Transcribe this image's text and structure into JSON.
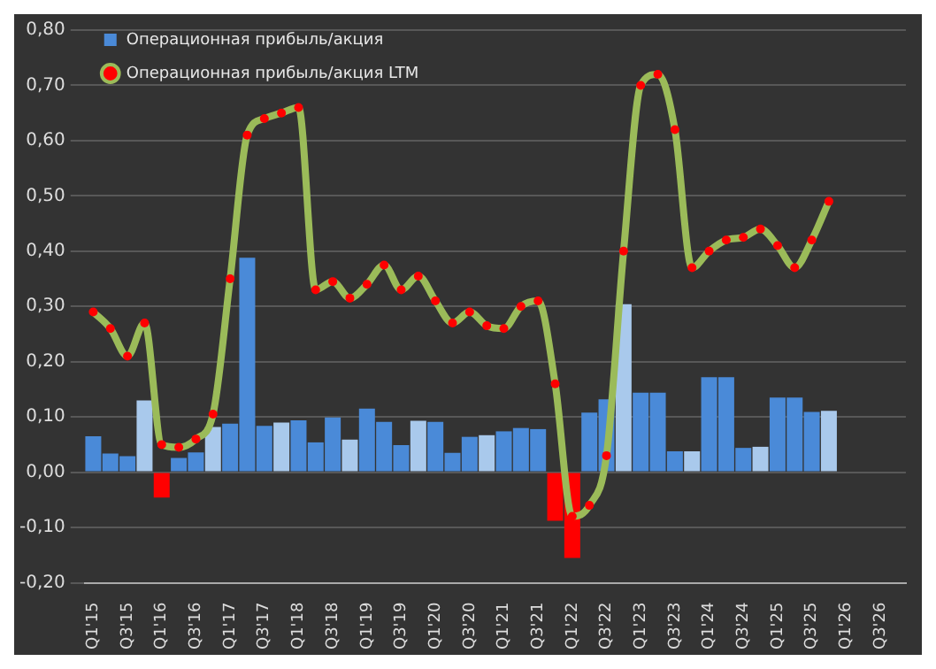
{
  "chart_data": {
    "type": "bar",
    "categories": [
      "Q1'15",
      null,
      "Q3'15",
      null,
      "Q1'16",
      null,
      "Q3'16",
      null,
      "Q1'17",
      null,
      "Q3'17",
      null,
      "Q1'18",
      null,
      "Q3'18",
      null,
      "Q1'19",
      null,
      "Q3'19",
      null,
      "Q1'20",
      null,
      "Q3'20",
      null,
      "Q1'21",
      null,
      "Q3'21",
      null,
      "Q1'22",
      null,
      "Q3'22",
      null,
      "Q1'23",
      null,
      "Q3'23",
      null,
      "Q1'24",
      null,
      "Q3'24",
      null,
      "Q1'25",
      null,
      "Q3'25",
      null,
      "Q1'26",
      null,
      "Q3'26",
      null
    ],
    "series": [
      {
        "name": "Операционная прибыль/акция",
        "color": "#4a8ad8",
        "colors": [
          "#4a8ad8",
          "#4a8ad8",
          "#4a8ad8",
          "#a9c9ec",
          "#ff0000",
          "#4a8ad8",
          "#4a8ad8",
          "#a9c9ec",
          "#4a8ad8",
          "#4a8ad8",
          "#4a8ad8",
          "#a9c9ec",
          "#4a8ad8",
          "#4a8ad8",
          "#4a8ad8",
          "#a9c9ec",
          "#4a8ad8",
          "#4a8ad8",
          "#4a8ad8",
          "#a9c9ec",
          "#4a8ad8",
          "#4a8ad8",
          "#4a8ad8",
          "#a9c9ec",
          "#4a8ad8",
          "#4a8ad8",
          "#4a8ad8",
          "#ff0000",
          "#ff0000",
          "#4a8ad8",
          "#4a8ad8",
          "#a9c9ec",
          "#4a8ad8",
          "#4a8ad8",
          "#4a8ad8",
          "#a9c9ec",
          "#4a8ad8",
          "#4a8ad8",
          "#4a8ad8",
          "#a9c9ec",
          "#4a8ad8",
          "#4a8ad8",
          "#4a8ad8",
          "#a9c9ec",
          "#4a8ad8",
          "#4a8ad8",
          "#4a8ad8",
          "#4a8ad8"
        ],
        "values": [
          0.065,
          0.034,
          0.029,
          0.13,
          -0.046,
          0.026,
          0.036,
          0.082,
          0.088,
          0.388,
          0.084,
          0.09,
          0.094,
          0.054,
          0.099,
          0.059,
          0.115,
          0.091,
          0.049,
          0.093,
          0.091,
          0.035,
          0.064,
          0.067,
          0.074,
          0.08,
          0.078,
          -0.088,
          -0.155,
          0.108,
          0.132,
          0.304,
          0.144,
          0.144,
          0.038,
          0.038,
          0.172,
          0.172,
          0.044,
          0.046,
          0.135,
          0.135,
          0.109,
          0.111,
          null,
          null,
          null,
          null
        ]
      },
      {
        "name": "Операционная прибыль/акция LTM",
        "type": "line",
        "color": "#9bbb59",
        "marker": "circle",
        "values": [
          0.29,
          0.26,
          0.21,
          0.27,
          0.05,
          0.045,
          0.06,
          0.105,
          0.35,
          0.61,
          0.64,
          0.65,
          0.66,
          0.33,
          0.345,
          0.315,
          0.34,
          0.375,
          0.33,
          0.355,
          0.31,
          0.27,
          0.29,
          0.265,
          0.26,
          0.3,
          0.31,
          0.16,
          -0.08,
          -0.06,
          0.03,
          0.4,
          0.7,
          0.72,
          0.62,
          0.37,
          0.4,
          0.42,
          0.425,
          0.44,
          0.41,
          0.37,
          0.42,
          0.49,
          null,
          null,
          null,
          null
        ]
      }
    ],
    "ylim": [
      -0.2,
      0.8
    ],
    "yticks": [
      {
        "value": -0.2,
        "label": "-0,20"
      },
      {
        "value": -0.1,
        "label": "-0,10"
      },
      {
        "value": 0,
        "label": "0,00"
      },
      {
        "value": 0.1,
        "label": "0,10"
      },
      {
        "value": 0.2,
        "label": "0,20"
      },
      {
        "value": 0.3,
        "label": "0,30"
      },
      {
        "value": 0.4,
        "label": "0,40"
      },
      {
        "value": 0.5,
        "label": "0,50"
      },
      {
        "value": 0.6,
        "label": "0,60"
      },
      {
        "value": 0.7,
        "label": "0,70"
      },
      {
        "value": 0.8,
        "label": "0,80"
      }
    ],
    "grid": "y",
    "legend": "top left"
  }
}
